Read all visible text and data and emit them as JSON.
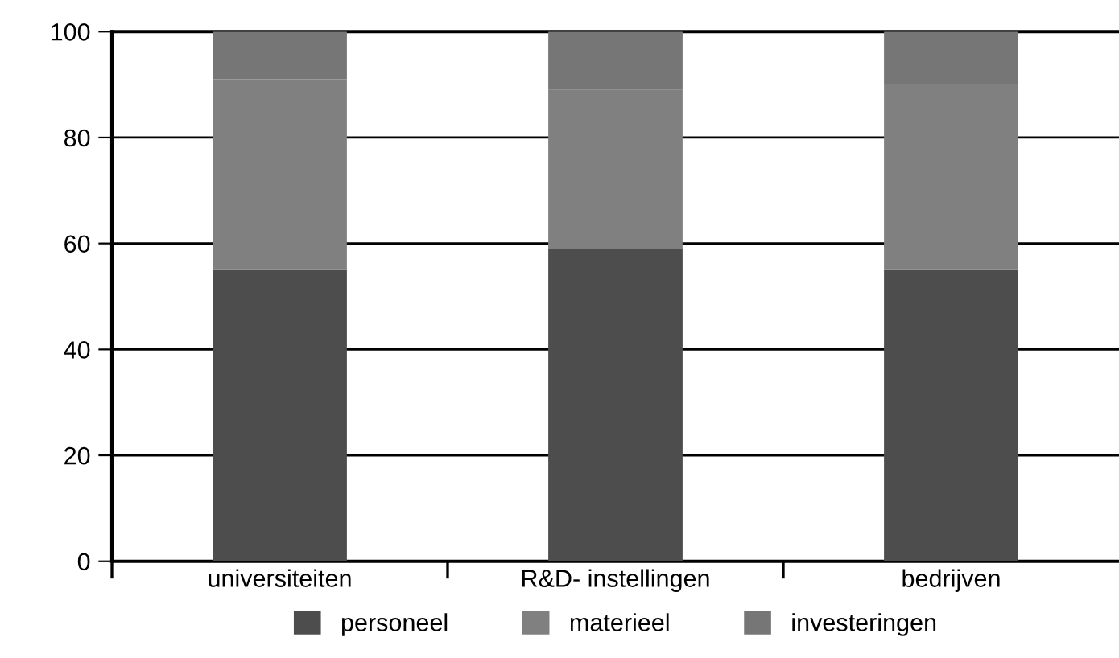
{
  "chart_data": {
    "type": "bar",
    "stacked": true,
    "categories": [
      "universiteiten",
      "R&D- instellingen",
      "bedrijven"
    ],
    "series": [
      {
        "name": "personeel",
        "color": "#4d4d4d",
        "values": [
          55,
          59,
          55
        ]
      },
      {
        "name": "materieel",
        "color": "#808080",
        "values": [
          36,
          30,
          35
        ]
      },
      {
        "name": "investeringen",
        "color": "#767676",
        "values": [
          9,
          11,
          10
        ]
      }
    ],
    "ylim": [
      0,
      100
    ],
    "yticks": [
      0,
      20,
      40,
      60,
      80,
      100
    ],
    "grid": "y",
    "legend": "bottom"
  }
}
